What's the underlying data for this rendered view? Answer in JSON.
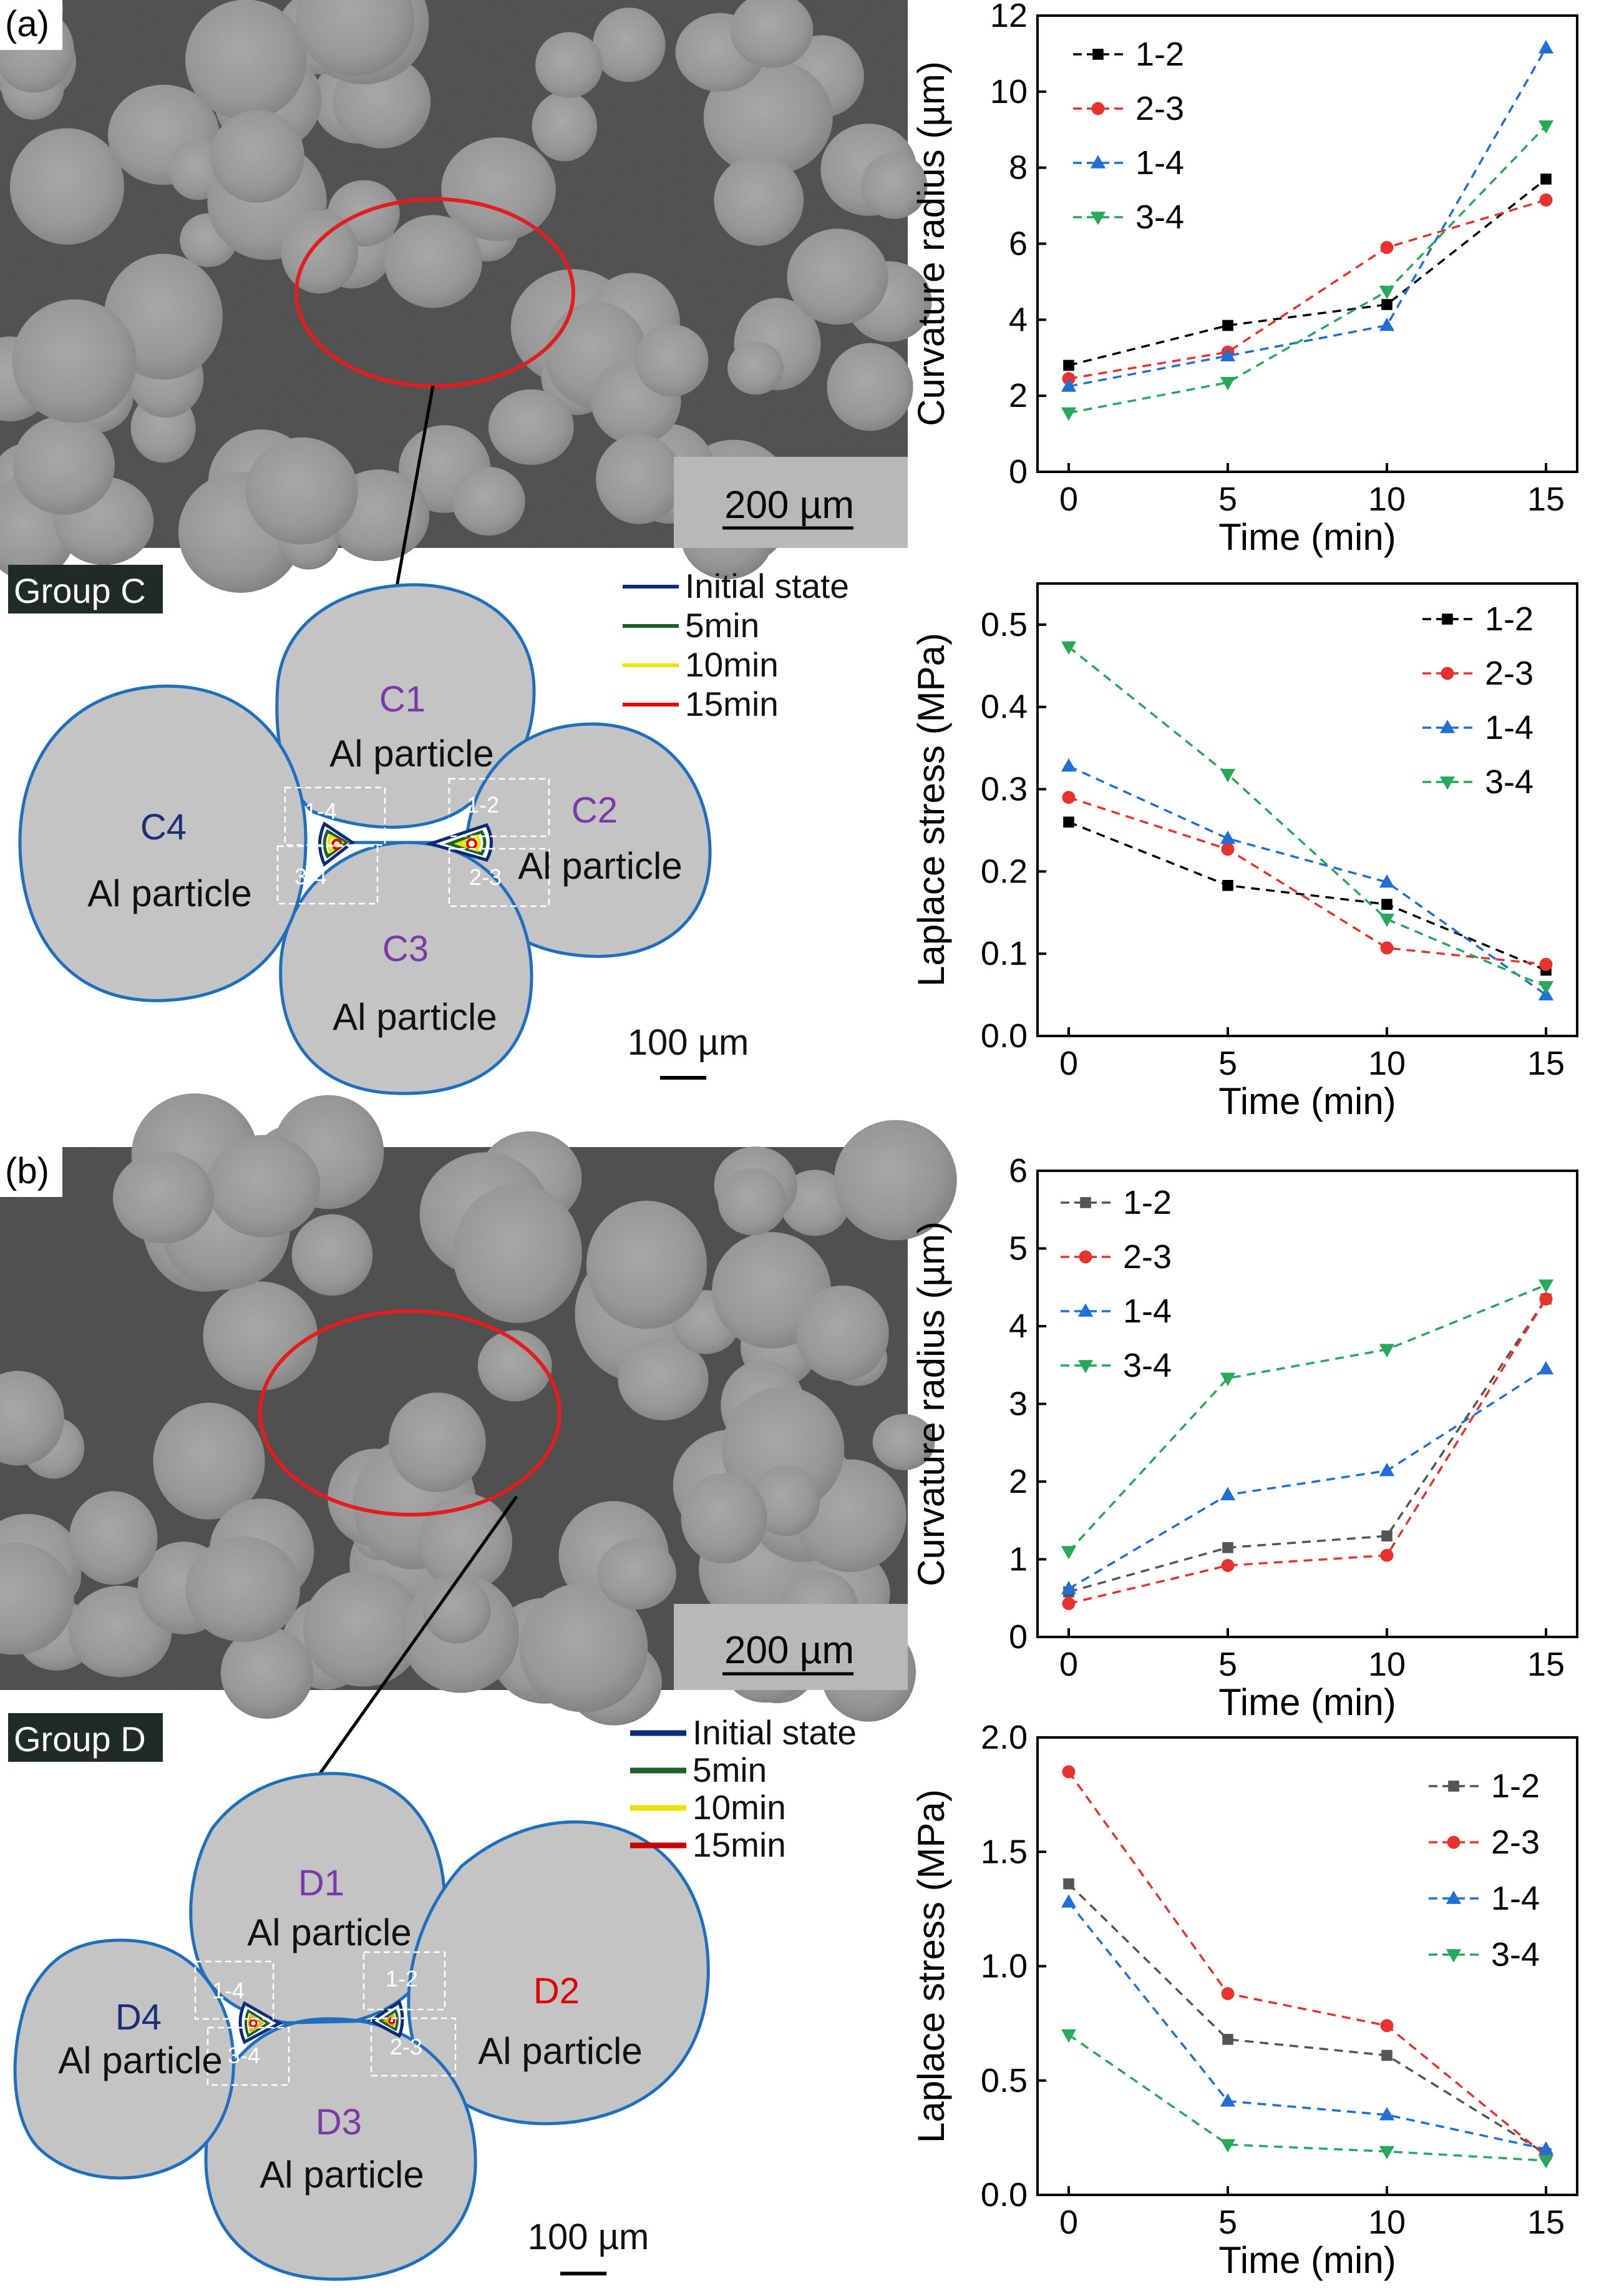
{
  "panels": [
    {
      "label": "(a)",
      "scale_bar_image": "200 µm",
      "group_label": "Group C",
      "legend": [
        "Initial state",
        "5min",
        "10min",
        "15min"
      ],
      "legend_colors": [
        "#0b2a78",
        "#1f5f2a",
        "#e6e600",
        "#e00000"
      ],
      "particles": [
        {
          "id": "C1",
          "text": "Al particle",
          "id_color": "#7b3aa8"
        },
        {
          "id": "C2",
          "text": "Al particle",
          "id_color": "#7b3aa8"
        },
        {
          "id": "C3",
          "text": "Al particle",
          "id_color": "#7b3aa8"
        },
        {
          "id": "C4",
          "text": "Al particle",
          "id_color": "#1a2f78"
        }
      ],
      "neck_labels": [
        "1-4",
        "3-4",
        "1-2",
        "2-3"
      ],
      "scale_bar_model": "100 µm"
    },
    {
      "label": "(b)",
      "scale_bar_image": "200 µm",
      "group_label": "Group D",
      "legend": [
        "Initial state",
        "5min",
        "10min",
        "15min"
      ],
      "legend_colors": [
        "#0b2a78",
        "#1f5f2a",
        "#e6e600",
        "#e00000"
      ],
      "particles": [
        {
          "id": "D1",
          "text": "Al particle",
          "id_color": "#7b3aa8"
        },
        {
          "id": "D2",
          "text": "Al particle",
          "id_color": "#e00000"
        },
        {
          "id": "D3",
          "text": "Al particle",
          "id_color": "#7b3aa8"
        },
        {
          "id": "D4",
          "text": "Al particle",
          "id_color": "#1a2f78"
        }
      ],
      "neck_labels": [
        "1-4",
        "3-4",
        "1-2",
        "2-3"
      ],
      "scale_bar_model": "100 µm"
    }
  ],
  "chart_data": [
    {
      "type": "line",
      "xlabel": "Time (min)",
      "ylabel": "Curvature radius (µm)",
      "x": [
        0,
        5,
        10,
        15
      ],
      "xticks": [
        "0",
        "5",
        "10",
        "15"
      ],
      "ylim": [
        0,
        12
      ],
      "yticks": [
        "0",
        "2",
        "4",
        "6",
        "8",
        "10",
        "12"
      ],
      "legend_position": "top-left",
      "series": [
        {
          "name": "1-2",
          "values": [
            2.8,
            3.85,
            4.4,
            7.7
          ],
          "color": "#000000",
          "marker": "square"
        },
        {
          "name": "2-3",
          "values": [
            2.45,
            3.15,
            5.9,
            7.15
          ],
          "color": "#e8322d",
          "marker": "circle"
        },
        {
          "name": "1-4",
          "values": [
            2.25,
            3.05,
            3.85,
            11.15
          ],
          "color": "#1f6fd6",
          "marker": "triangle-up"
        },
        {
          "name": "3-4",
          "values": [
            1.55,
            2.35,
            4.75,
            9.1
          ],
          "color": "#27a85a",
          "marker": "triangle-down"
        }
      ]
    },
    {
      "type": "line",
      "xlabel": "Time (min)",
      "ylabel": "Laplace stress (MPa)",
      "x": [
        0,
        5,
        10,
        15
      ],
      "xticks": [
        "0",
        "5",
        "10",
        "15"
      ],
      "ylim": [
        0,
        0.55
      ],
      "yticks": [
        "0.0",
        "0.1",
        "0.2",
        "0.3",
        "0.4",
        "0.5"
      ],
      "legend_position": "top-right",
      "series": [
        {
          "name": "1-2",
          "values": [
            0.26,
            0.183,
            0.16,
            0.08
          ],
          "color": "#000000",
          "marker": "square"
        },
        {
          "name": "2-3",
          "values": [
            0.29,
            0.227,
            0.107,
            0.087
          ],
          "color": "#e8322d",
          "marker": "circle"
        },
        {
          "name": "1-4",
          "values": [
            0.328,
            0.24,
            0.187,
            0.05
          ],
          "color": "#1f6fd6",
          "marker": "triangle-up"
        },
        {
          "name": "3-4",
          "values": [
            0.473,
            0.318,
            0.142,
            0.06
          ],
          "color": "#27a85a",
          "marker": "triangle-down"
        }
      ]
    },
    {
      "type": "line",
      "xlabel": "Time (min)",
      "ylabel": "Curvature radius (µm)",
      "x": [
        0,
        5,
        10,
        15
      ],
      "xticks": [
        "0",
        "5",
        "10",
        "15"
      ],
      "ylim": [
        0,
        6
      ],
      "yticks": [
        "0",
        "1",
        "2",
        "3",
        "4",
        "5",
        "6"
      ],
      "legend_position": "top-left",
      "series": [
        {
          "name": "1-2",
          "values": [
            0.58,
            1.15,
            1.3,
            4.35
          ],
          "color": "#555555",
          "marker": "square"
        },
        {
          "name": "2-3",
          "values": [
            0.43,
            0.92,
            1.05,
            4.35
          ],
          "color": "#e8322d",
          "marker": "circle"
        },
        {
          "name": "1-4",
          "values": [
            0.62,
            1.83,
            2.14,
            3.45
          ],
          "color": "#1f6fd6",
          "marker": "triangle-up"
        },
        {
          "name": "3-4",
          "values": [
            1.1,
            3.33,
            3.7,
            4.53
          ],
          "color": "#27a85a",
          "marker": "triangle-down"
        }
      ]
    },
    {
      "type": "line",
      "xlabel": "Time (min)",
      "ylabel": "Laplace stress (MPa)",
      "x": [
        0,
        5,
        10,
        15
      ],
      "xticks": [
        "0",
        "5",
        "10",
        "15"
      ],
      "ylim": [
        0,
        2.0
      ],
      "yticks": [
        "0.0",
        "0.5",
        "1.0",
        "1.5",
        "2.0"
      ],
      "legend_position": "top-right",
      "series": [
        {
          "name": "1-2",
          "values": [
            1.36,
            0.68,
            0.61,
            0.18
          ],
          "color": "#555555",
          "marker": "square"
        },
        {
          "name": "2-3",
          "values": [
            1.85,
            0.88,
            0.74,
            0.17
          ],
          "color": "#e8322d",
          "marker": "circle"
        },
        {
          "name": "1-4",
          "values": [
            1.28,
            0.41,
            0.35,
            0.2
          ],
          "color": "#1f6fd6",
          "marker": "triangle-up"
        },
        {
          "name": "3-4",
          "values": [
            0.7,
            0.22,
            0.19,
            0.15
          ],
          "color": "#27a85a",
          "marker": "triangle-down"
        }
      ]
    }
  ]
}
